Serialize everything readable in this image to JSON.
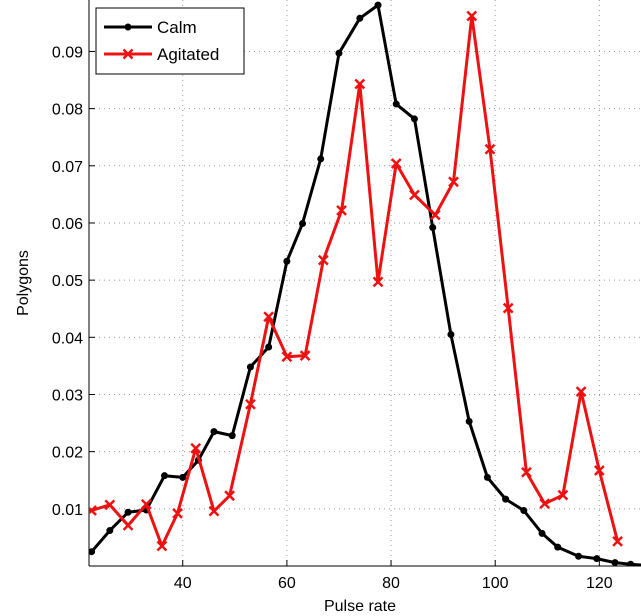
{
  "chart_data": {
    "type": "line",
    "title": "",
    "xlabel": "Pulse rate",
    "ylabel": "Polygons",
    "xlim": [
      22,
      128
    ],
    "ylim": [
      0,
      0.099
    ],
    "xticks": [
      40,
      60,
      80,
      100,
      120
    ],
    "xtick_labels": [
      "40",
      "60",
      "80",
      "100",
      "120"
    ],
    "yticks": [
      0.01,
      0.02,
      0.03,
      0.04,
      0.05,
      0.06,
      0.07,
      0.08,
      0.09
    ],
    "ytick_labels": [
      "0.01",
      "0.02",
      "0.03",
      "0.04",
      "0.05",
      "0.06",
      "0.07",
      "0.08",
      "0.09"
    ],
    "grid": true,
    "legend_position": "top-left",
    "series": [
      {
        "name": "Calm",
        "color": "#000000",
        "marker": "dot",
        "x": [
          22.5,
          26,
          29.5,
          33,
          36.5,
          40,
          43,
          46,
          49.5,
          53,
          56.5,
          60,
          63,
          66.5,
          70,
          74,
          77.5,
          81,
          84.5,
          88,
          91.5,
          95,
          98.5,
          102,
          105.5,
          109,
          112,
          116,
          119.5,
          123,
          126,
          129
        ],
        "values": [
          0.0025,
          0.0062,
          0.0094,
          0.0098,
          0.0158,
          0.0155,
          0.0185,
          0.0235,
          0.0228,
          0.0348,
          0.0383,
          0.0533,
          0.0599,
          0.0712,
          0.0897,
          0.0958,
          0.0981,
          0.0808,
          0.0782,
          0.0592,
          0.0405,
          0.0253,
          0.0155,
          0.0117,
          0.0097,
          0.0057,
          0.0033,
          0.0017,
          0.0013,
          0.0006,
          0.0003,
          0.0001
        ]
      },
      {
        "name": "Agitated",
        "color": "#ee1111",
        "marker": "x",
        "x": [
          22.5,
          26,
          29.5,
          33,
          36,
          39,
          42.5,
          46,
          49,
          53,
          56.5,
          60,
          63.5,
          67,
          70.5,
          74,
          77.5,
          81,
          84.5,
          88.5,
          92,
          95.5,
          99,
          102.5,
          106,
          109.5,
          113,
          116.5,
          120,
          123.5
        ],
        "values": [
          0.0097,
          0.0107,
          0.0071,
          0.0108,
          0.0035,
          0.0092,
          0.0206,
          0.0096,
          0.0123,
          0.0283,
          0.0436,
          0.0366,
          0.0368,
          0.0535,
          0.0622,
          0.0843,
          0.0497,
          0.0704,
          0.0649,
          0.0614,
          0.0672,
          0.0962,
          0.0729,
          0.0451,
          0.0164,
          0.0109,
          0.0124,
          0.0305,
          0.0167,
          0.0043
        ]
      }
    ]
  }
}
